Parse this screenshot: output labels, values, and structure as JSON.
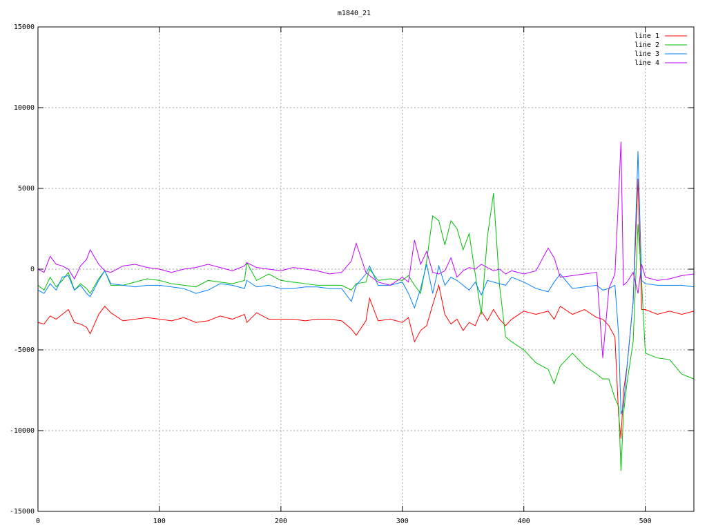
{
  "chart_data": {
    "type": "line",
    "title": "m1840_21",
    "x": [
      0,
      5,
      10,
      15,
      20,
      25,
      30,
      35,
      40,
      43,
      50,
      55,
      60,
      70,
      80,
      90,
      100,
      110,
      120,
      130,
      140,
      150,
      160,
      170,
      172,
      180,
      190,
      200,
      210,
      220,
      230,
      240,
      250,
      258,
      262,
      270,
      273,
      280,
      290,
      300,
      305,
      310,
      315,
      320,
      325,
      330,
      335,
      340,
      345,
      350,
      355,
      360,
      365,
      370,
      375,
      380,
      385,
      390,
      400,
      410,
      420,
      425,
      430,
      440,
      450,
      460,
      465,
      470,
      475,
      478,
      480,
      482,
      485,
      490,
      494,
      497,
      500,
      510,
      520,
      530,
      540
    ],
    "series": [
      {
        "name": "line 1",
        "color": "#ff0000",
        "values": [
          -3300,
          -3400,
          -2900,
          -3100,
          -2800,
          -2500,
          -3300,
          -3400,
          -3600,
          -4000,
          -2800,
          -2300,
          -2700,
          -3200,
          -3100,
          -3000,
          -3100,
          -3200,
          -3000,
          -3300,
          -3200,
          -2900,
          -3100,
          -2800,
          -3300,
          -2700,
          -3100,
          -3100,
          -3100,
          -3200,
          -3100,
          -3100,
          -3200,
          -3700,
          -4100,
          -3200,
          -1800,
          -3200,
          -3100,
          -3300,
          -3000,
          -4500,
          -3800,
          -3500,
          -2200,
          -1000,
          -2800,
          -3400,
          -3100,
          -3800,
          -3300,
          -3500,
          -2600,
          -3200,
          -2500,
          -3100,
          -3500,
          -3100,
          -2600,
          -2800,
          -2600,
          -3100,
          -2300,
          -2800,
          -2500,
          -3000,
          -3100,
          -3500,
          -4200,
          -9000,
          -10500,
          -7600,
          -6000,
          -2000,
          5600,
          -2500,
          -2500,
          -2800,
          -2600,
          -2800,
          -2600
        ]
      },
      {
        "name": "line 2",
        "color": "#00c000",
        "values": [
          -1000,
          -1300,
          -500,
          -1100,
          -700,
          -200,
          -1300,
          -900,
          -1200,
          -1500,
          -600,
          -100,
          -1000,
          -1000,
          -800,
          -600,
          -700,
          -900,
          -1000,
          -1100,
          -700,
          -800,
          -900,
          -700,
          400,
          -700,
          -300,
          -700,
          -800,
          -900,
          -1000,
          -1000,
          -1000,
          -1300,
          -900,
          -800,
          0,
          -700,
          -600,
          -700,
          -400,
          -1000,
          -1500,
          500,
          3300,
          3000,
          1500,
          3000,
          2500,
          1200,
          2200,
          -300,
          -2800,
          2000,
          4700,
          -1000,
          -4200,
          -4500,
          -5000,
          -5800,
          -6200,
          -7100,
          -6000,
          -5200,
          -6000,
          -6500,
          -6800,
          -6800,
          -8000,
          -8500,
          -12500,
          -9000,
          -7000,
          -4500,
          2800,
          -800,
          -5200,
          -5500,
          -5600,
          -6500,
          -6800
        ]
      },
      {
        "name": "line 3",
        "color": "#0080ff",
        "values": [
          -1300,
          -1500,
          -900,
          -1300,
          -500,
          -400,
          -1300,
          -1000,
          -1500,
          -1700,
          -700,
          -100,
          -900,
          -1000,
          -1100,
          -1000,
          -1000,
          -1100,
          -1200,
          -1500,
          -1300,
          -900,
          -1000,
          -1200,
          -700,
          -1100,
          -1000,
          -1200,
          -1200,
          -1100,
          -1100,
          -1200,
          -1200,
          -2000,
          -1000,
          -300,
          200,
          -1000,
          -1000,
          -800,
          -1500,
          -2400,
          -1200,
          300,
          -1500,
          200,
          -1000,
          -500,
          -700,
          -1000,
          -1300,
          -800,
          -1600,
          -700,
          -800,
          -900,
          -1000,
          -500,
          -800,
          -1200,
          -1400,
          -800,
          -300,
          -1200,
          -1100,
          -1000,
          -1300,
          -1200,
          -1000,
          -4000,
          -9000,
          -8500,
          -6000,
          -2000,
          7300,
          -700,
          -900,
          -1000,
          -1000,
          -1000,
          -1100
        ]
      },
      {
        "name": "line 4",
        "color": "#c000ff",
        "values": [
          0,
          -200,
          800,
          300,
          200,
          0,
          -600,
          200,
          600,
          1200,
          300,
          -100,
          -200,
          200,
          300,
          100,
          0,
          -200,
          0,
          100,
          300,
          100,
          -100,
          200,
          400,
          100,
          0,
          -100,
          100,
          0,
          -100,
          -300,
          -200,
          500,
          1600,
          -200,
          -400,
          -800,
          -1000,
          -500,
          -800,
          1800,
          300,
          1100,
          -200,
          -300,
          -100,
          700,
          -500,
          -100,
          100,
          0,
          300,
          100,
          -100,
          0,
          -300,
          -100,
          -300,
          -100,
          1300,
          700,
          -500,
          -400,
          -300,
          -200,
          -5500,
          -1200,
          -300,
          4500,
          7900,
          -1000,
          -800,
          -200,
          -1500,
          300,
          -500,
          -700,
          -600,
          -400,
          -300
        ]
      }
    ],
    "xlim": [
      0,
      540
    ],
    "xticks": [
      0,
      100,
      200,
      300,
      400,
      500
    ],
    "ylim": [
      -15000,
      15000
    ],
    "yticks": [
      -15000,
      -10000,
      -5000,
      0,
      5000,
      10000,
      15000
    ],
    "grid": true,
    "legend": "top-right"
  }
}
